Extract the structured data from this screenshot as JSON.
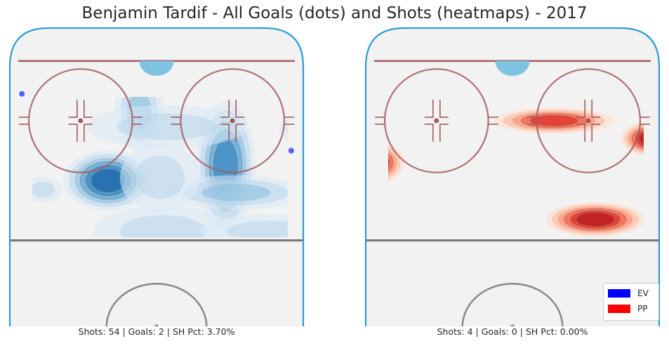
{
  "chart_data": {
    "type": "heatmap",
    "title": "Benjamin Tardif - All Goals (dots) and Shots (heatmaps) - 2017",
    "legend": {
      "placement": "bottom-right",
      "entries": [
        {
          "label": "EV",
          "color": "#0000ff"
        },
        {
          "label": "PP",
          "color": "#ff0000"
        }
      ]
    },
    "panels": [
      {
        "situation": "EV",
        "colormap": "Blues",
        "caption": "Shots: 54 | Goals: 2 | SH Pct: 3.70%",
        "shots": 54,
        "goals": 2,
        "sh_pct": 3.7,
        "goal_dots": [
          {
            "x": -39,
            "y": 78
          },
          {
            "x": 39,
            "y": 59
          }
        ],
        "shot_density": [
          {
            "x": -14,
            "y": 49,
            "sx": 9,
            "sy": 7,
            "w": 1.0
          },
          {
            "x": 20,
            "y": 54,
            "sx": 6,
            "sy": 15,
            "w": 0.85
          },
          {
            "x": 48,
            "y": 76,
            "sx": 4,
            "sy": 8,
            "w": 0.75
          },
          {
            "x": 47,
            "y": 66,
            "sx": 8,
            "sy": 4,
            "w": 0.6
          },
          {
            "x": -5,
            "y": 72,
            "sx": 5,
            "sy": 9,
            "w": 0.45
          },
          {
            "x": 23,
            "y": 45,
            "sx": 14,
            "sy": 4,
            "w": 0.45
          },
          {
            "x": 2,
            "y": 32,
            "sx": 14,
            "sy": 6,
            "w": 0.35
          },
          {
            "x": 1,
            "y": 50,
            "sx": 8,
            "sy": 8,
            "w": 0.3
          },
          {
            "x": 47,
            "y": 39,
            "sx": 6,
            "sy": 4,
            "w": 0.3
          },
          {
            "x": 3,
            "y": 67,
            "sx": 16,
            "sy": 5,
            "w": 0.25
          },
          {
            "x": -33,
            "y": 46,
            "sx": 4,
            "sy": 3,
            "w": 0.2
          },
          {
            "x": 33,
            "y": 32,
            "sx": 14,
            "sy": 4,
            "w": 0.22
          },
          {
            "x": 55,
            "y": 54,
            "sx": 8,
            "sy": 12,
            "w": 0.22
          }
        ]
      },
      {
        "situation": "PP",
        "colormap": "Reds",
        "caption": "Shots: 4 | Goals: 0 | SH Pct: 0.00%",
        "shots": 4,
        "goals": 0,
        "sh_pct": 0.0,
        "goal_dots": [],
        "shot_density": [
          {
            "x": -40,
            "y": 55,
            "sx": 6,
            "sy": 5,
            "w": 1.0
          },
          {
            "x": 12,
            "y": 69,
            "sx": 12,
            "sy": 3,
            "w": 0.85
          },
          {
            "x": 40,
            "y": 63,
            "sx": 6,
            "sy": 4,
            "w": 1.0
          },
          {
            "x": 24,
            "y": 36,
            "sx": 10,
            "sy": 4,
            "w": 1.0
          }
        ]
      }
    ]
  }
}
